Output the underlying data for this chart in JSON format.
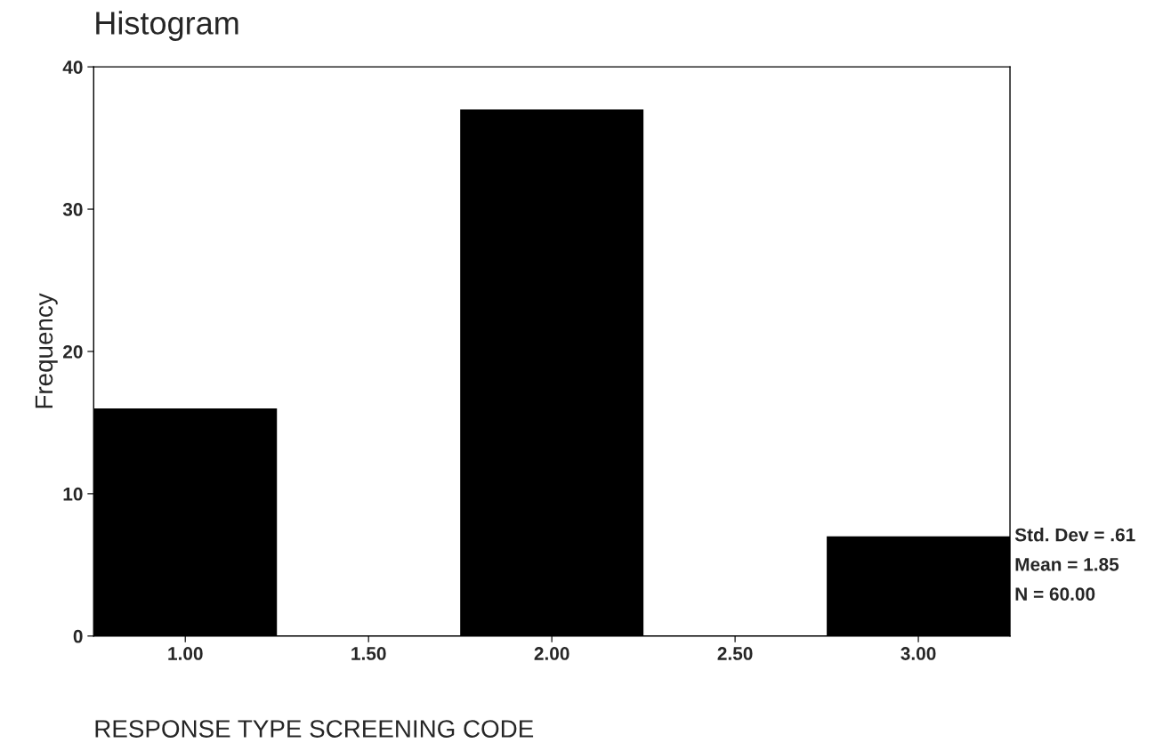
{
  "chart_data": {
    "type": "histogram",
    "title": "Histogram",
    "xlabel": "RESPONSE TYPE SCREENING CODE",
    "ylabel": "Frequency",
    "bins": [
      0.75,
      1.25,
      1.75,
      2.25,
      2.75,
      3.25
    ],
    "values": [
      16,
      0,
      37,
      0,
      7
    ],
    "color": "#000000",
    "xlim": [
      0.75,
      3.25
    ],
    "xticks": [
      {
        "value": 1,
        "label": "1.00"
      },
      {
        "value": 1.5,
        "label": "1.50"
      },
      {
        "value": 2,
        "label": "2.00"
      },
      {
        "value": 2.5,
        "label": "2.50"
      },
      {
        "value": 3,
        "label": "3.00"
      }
    ],
    "ylim": [
      0,
      40
    ],
    "yticks": [
      0,
      10,
      20,
      30,
      40
    ],
    "annotations": [
      "Std. Dev = .61",
      "Mean = 1.85",
      "N = 60.00"
    ],
    "grid": false,
    "legend": false
  }
}
